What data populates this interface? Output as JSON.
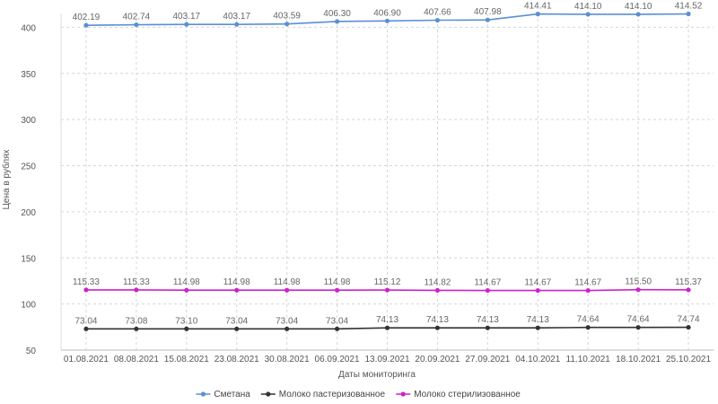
{
  "chart_data": {
    "type": "line",
    "title": "",
    "xlabel": "Даты мониторинга",
    "ylabel": "Цена в рублях",
    "ylim": [
      50,
      400
    ],
    "yticks": [
      50,
      100,
      150,
      200,
      250,
      300,
      350,
      400
    ],
    "grid": true,
    "legend_position": "bottom-center",
    "categories": [
      "01.08.2021",
      "08.08.2021",
      "15.08.2021",
      "23.08.2021",
      "30.08.2021",
      "06.09.2021",
      "13.09.2021",
      "20.09.2021",
      "27.09.2021",
      "04.10.2021",
      "11.10.2021",
      "18.10.2021",
      "25.10.2021"
    ],
    "series": [
      {
        "name": "Сметана",
        "color": "#5b8fd4",
        "values": [
          402.19,
          402.74,
          403.17,
          403.17,
          403.59,
          406.3,
          406.9,
          407.66,
          407.98,
          414.41,
          414.1,
          414.1,
          414.52
        ],
        "labels": [
          "402.19",
          "402.74",
          "403.17",
          "403.17",
          "403.59",
          "406.30",
          "406.90",
          "407.66",
          "407.98",
          "414.41",
          "414.10",
          "414.10",
          "414.52"
        ]
      },
      {
        "name": "Молоко пастеризованное",
        "color": "#333333",
        "values": [
          73.04,
          73.08,
          73.1,
          73.04,
          73.04,
          73.04,
          74.13,
          74.13,
          74.13,
          74.13,
          74.64,
          74.64,
          74.74
        ],
        "labels": [
          "73.04",
          "73.08",
          "73.10",
          "73.04",
          "73.04",
          "73.04",
          "74.13",
          "74.13",
          "74.13",
          "74.13",
          "74.64",
          "74.64",
          "74.74"
        ]
      },
      {
        "name": "Молоко стерилизованное",
        "color": "#cc22cc",
        "values": [
          115.33,
          115.33,
          114.98,
          114.98,
          114.98,
          114.98,
          115.12,
          114.82,
          114.67,
          114.67,
          114.67,
          115.5,
          115.37
        ],
        "labels": [
          "115.33",
          "115.33",
          "114.98",
          "114.98",
          "114.98",
          "114.98",
          "115.12",
          "114.82",
          "114.67",
          "114.67",
          "114.67",
          "115.50",
          "115.37"
        ]
      }
    ]
  }
}
